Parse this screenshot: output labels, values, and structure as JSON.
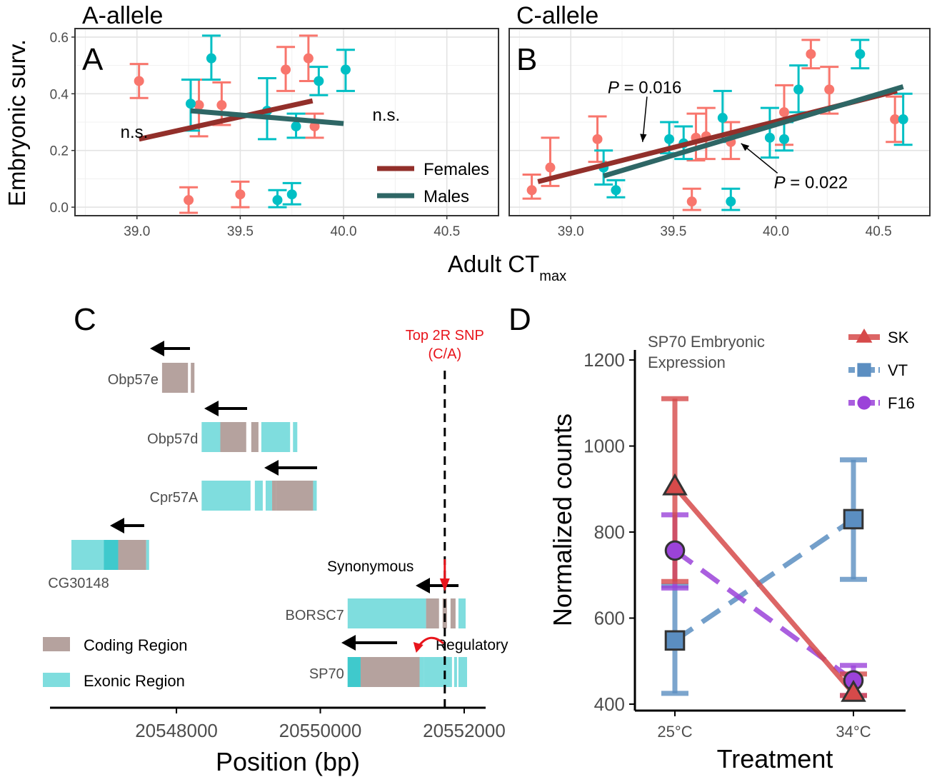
{
  "figure": {
    "y_label_AB": "Embryonic surv.",
    "x_label_AB_main": "Adult CT",
    "x_label_AB_sub": "max"
  },
  "chart_data": [
    {
      "id": "A",
      "type": "scatter",
      "panel_letter": "A",
      "title": "A-allele",
      "xlim": [
        38.7,
        40.75
      ],
      "ylim": [
        -0.03,
        0.63
      ],
      "x_ticks": [
        39.0,
        39.5,
        40.0,
        40.5
      ],
      "x_tick_labels": [
        "39.0",
        "39.5",
        "40.0",
        "40.5"
      ],
      "y_ticks": [
        0.0,
        0.2,
        0.4,
        0.6
      ],
      "y_tick_labels": [
        "0.0",
        "0.2",
        "0.4",
        "0.6"
      ],
      "grid": true,
      "legend_position": "bottom-right",
      "series": [
        {
          "name": "Females",
          "color": "#F8766D",
          "points": [
            {
              "x": 39.01,
              "y": 0.445,
              "lo": 0.385,
              "hi": 0.505
            },
            {
              "x": 39.25,
              "y": 0.025,
              "lo": -0.02,
              "hi": 0.07
            },
            {
              "x": 39.3,
              "y": 0.36,
              "lo": 0.25,
              "hi": 0.45
            },
            {
              "x": 39.41,
              "y": 0.36,
              "lo": 0.29,
              "hi": 0.44
            },
            {
              "x": 39.5,
              "y": 0.045,
              "lo": 0.0,
              "hi": 0.09
            },
            {
              "x": 39.72,
              "y": 0.485,
              "lo": 0.41,
              "hi": 0.565
            },
            {
              "x": 39.83,
              "y": 0.525,
              "lo": 0.445,
              "hi": 0.605
            },
            {
              "x": 39.86,
              "y": 0.285,
              "lo": 0.245,
              "hi": 0.33
            }
          ],
          "fit": {
            "x": [
              39.01,
              39.85
            ],
            "y": [
              0.24,
              0.375
            ]
          }
        },
        {
          "name": "Males",
          "color": "#00BFC4",
          "points": [
            {
              "x": 39.26,
              "y": 0.365,
              "lo": 0.27,
              "hi": 0.45
            },
            {
              "x": 39.36,
              "y": 0.525,
              "lo": 0.45,
              "hi": 0.605
            },
            {
              "x": 39.63,
              "y": 0.34,
              "lo": 0.24,
              "hi": 0.455
            },
            {
              "x": 39.68,
              "y": 0.025,
              "lo": 0.0,
              "hi": 0.06
            },
            {
              "x": 39.75,
              "y": 0.045,
              "lo": 0.01,
              "hi": 0.085
            },
            {
              "x": 39.77,
              "y": 0.285,
              "lo": 0.245,
              "hi": 0.33
            },
            {
              "x": 39.88,
              "y": 0.445,
              "lo": 0.395,
              "hi": 0.495
            },
            {
              "x": 40.01,
              "y": 0.485,
              "lo": 0.41,
              "hi": 0.555
            }
          ],
          "fit": {
            "x": [
              39.26,
              40.0
            ],
            "y": [
              0.34,
              0.295
            ]
          }
        }
      ],
      "annotations": [
        {
          "text": "n.s.",
          "x": 38.92,
          "y": 0.245
        },
        {
          "text": "n.s.",
          "x": 40.14,
          "y": 0.305
        }
      ]
    },
    {
      "id": "B",
      "type": "scatter",
      "panel_letter": "B",
      "title": "C-allele",
      "xlim": [
        38.7,
        40.75
      ],
      "ylim": [
        -0.03,
        0.63
      ],
      "x_ticks": [
        39.0,
        39.5,
        40.0,
        40.5
      ],
      "x_tick_labels": [
        "39.0",
        "39.5",
        "40.0",
        "40.5"
      ],
      "grid": true,
      "series": [
        {
          "name": "Females",
          "color": "#F8766D",
          "points": [
            {
              "x": 38.81,
              "y": 0.06,
              "lo": 0.03,
              "hi": 0.115
            },
            {
              "x": 38.9,
              "y": 0.14,
              "lo": 0.075,
              "hi": 0.245
            },
            {
              "x": 39.13,
              "y": 0.24,
              "lo": 0.16,
              "hi": 0.32
            },
            {
              "x": 39.59,
              "y": 0.02,
              "lo": -0.01,
              "hi": 0.065
            },
            {
              "x": 39.61,
              "y": 0.245,
              "lo": 0.165,
              "hi": 0.33
            },
            {
              "x": 39.66,
              "y": 0.25,
              "lo": 0.17,
              "hi": 0.35
            },
            {
              "x": 39.78,
              "y": 0.23,
              "lo": 0.17,
              "hi": 0.3
            },
            {
              "x": 40.04,
              "y": 0.335,
              "lo": 0.22,
              "hi": 0.43
            },
            {
              "x": 40.17,
              "y": 0.54,
              "lo": 0.49,
              "hi": 0.59
            },
            {
              "x": 40.26,
              "y": 0.415,
              "lo": 0.33,
              "hi": 0.495
            },
            {
              "x": 40.58,
              "y": 0.31,
              "lo": 0.23,
              "hi": 0.39
            }
          ],
          "fit": {
            "x": [
              38.84,
              40.59
            ],
            "y": [
              0.09,
              0.41
            ]
          }
        },
        {
          "name": "Males",
          "color": "#00BFC4",
          "points": [
            {
              "x": 39.16,
              "y": 0.14,
              "lo": 0.08,
              "hi": 0.2
            },
            {
              "x": 39.22,
              "y": 0.06,
              "lo": 0.035,
              "hi": 0.095
            },
            {
              "x": 39.48,
              "y": 0.24,
              "lo": 0.19,
              "hi": 0.3
            },
            {
              "x": 39.55,
              "y": 0.225,
              "lo": 0.17,
              "hi": 0.285
            },
            {
              "x": 39.74,
              "y": 0.315,
              "lo": 0.23,
              "hi": 0.41
            },
            {
              "x": 39.78,
              "y": 0.02,
              "lo": -0.01,
              "hi": 0.065
            },
            {
              "x": 39.97,
              "y": 0.245,
              "lo": 0.175,
              "hi": 0.35
            },
            {
              "x": 40.04,
              "y": 0.24,
              "lo": 0.2,
              "hi": 0.3
            },
            {
              "x": 40.11,
              "y": 0.415,
              "lo": 0.335,
              "hi": 0.5
            },
            {
              "x": 40.41,
              "y": 0.54,
              "lo": 0.49,
              "hi": 0.59
            },
            {
              "x": 40.62,
              "y": 0.31,
              "lo": 0.22,
              "hi": 0.4
            }
          ],
          "fit": {
            "x": [
              39.16,
              40.62
            ],
            "y": [
              0.11,
              0.425
            ]
          }
        }
      ],
      "annotations": [
        {
          "text_prefix": "P",
          "text": " = 0.016",
          "x": 39.18,
          "y": 0.425,
          "arrow_to": [
            39.35,
            0.23
          ]
        },
        {
          "text_prefix": "P",
          "text": " = 0.022",
          "x": 39.99,
          "y": 0.09,
          "arrow_to": [
            39.83,
            0.225
          ]
        }
      ]
    },
    {
      "id": "D",
      "type": "line",
      "panel_letter": "D",
      "inset_title": [
        "SP70 Embryonic",
        "Expression"
      ],
      "xlabel": "Treatment",
      "ylabel": "Normalized counts",
      "categories": [
        "25°C",
        "34°C"
      ],
      "ylim": [
        385,
        1240
      ],
      "y_ticks": [
        400,
        600,
        800,
        1000,
        1200
      ],
      "y_tick_labels": [
        "400",
        "600",
        "800",
        "1000",
        "1200"
      ],
      "grid": false,
      "legend_position": "top-right",
      "series": [
        {
          "name": "SK",
          "color": "#D64A4A",
          "marker": "triangle",
          "dash": "solid",
          "values": [
            905,
            425
          ],
          "lo": [
            685,
            420
          ],
          "hi": [
            1110,
            470
          ]
        },
        {
          "name": "VT",
          "color": "#5B8EC1",
          "marker": "square",
          "dash": "dashed",
          "values": [
            548,
            830
          ],
          "lo": [
            425,
            690
          ],
          "hi": [
            675,
            968
          ]
        },
        {
          "name": "F16",
          "color": "#9B43D9",
          "marker": "circle",
          "dash": "dashed",
          "values": [
            757,
            455
          ],
          "lo": [
            670,
            420
          ],
          "hi": [
            840,
            490
          ]
        }
      ]
    }
  ],
  "gene_panel": {
    "panel_letter": "C",
    "xlabel": "Position (bp)",
    "xlim": [
      20546250,
      20552420
    ],
    "x_ticks": [
      20548000,
      20550000,
      20552000
    ],
    "x_tick_labels": [
      "20548000",
      "20550000",
      "20552000"
    ],
    "snp_position": 20551730,
    "snp_label": [
      "Top 2R SNP",
      "(C/A)"
    ],
    "snp_color": "#E8151C",
    "synonymous_label": "Synonymous",
    "regulatory_label": "Regulatory",
    "coding_color": "#B5A29E",
    "exonic_color": "#7FDDDE",
    "legend": [
      {
        "name": "Coding Region",
        "color": "#B5A29E"
      },
      {
        "name": "Exonic Region",
        "color": "#7FDDDE"
      }
    ],
    "genes": [
      {
        "name": "Obp57e",
        "segments": [
          {
            "start": 20547800,
            "end": 20548160,
            "type": "coding"
          },
          {
            "start": 20548200,
            "end": 20548250,
            "type": "coding"
          }
        ]
      },
      {
        "name": "Obp57d",
        "segments": [
          {
            "start": 20548350,
            "end": 20548610,
            "type": "exonic"
          },
          {
            "start": 20548610,
            "end": 20548970,
            "type": "coding"
          },
          {
            "start": 20549040,
            "end": 20549140,
            "type": "coding"
          },
          {
            "start": 20549180,
            "end": 20549580,
            "type": "exonic"
          },
          {
            "start": 20549620,
            "end": 20549680,
            "type": "exonic"
          }
        ]
      },
      {
        "name": "Cpr57A",
        "segments": [
          {
            "start": 20548350,
            "end": 20549030,
            "type": "exonic"
          },
          {
            "start": 20549090,
            "end": 20549200,
            "type": "exonic"
          },
          {
            "start": 20549240,
            "end": 20549330,
            "type": "exonic"
          },
          {
            "start": 20549330,
            "end": 20549380,
            "type": "coding"
          },
          {
            "start": 20549380,
            "end": 20549900,
            "type": "coding"
          },
          {
            "start": 20549900,
            "end": 20549950,
            "type": "exonic"
          }
        ]
      },
      {
        "name": "CG30148",
        "segments": [
          {
            "start": 20546540,
            "end": 20546990,
            "type": "exonic"
          },
          {
            "start": 20546990,
            "end": 20547190,
            "type": "exonic"
          },
          {
            "start": 20547190,
            "end": 20547580,
            "type": "coding"
          },
          {
            "start": 20547580,
            "end": 20547620,
            "type": "exonic"
          }
        ]
      },
      {
        "name": "BORSC7",
        "segments": [
          {
            "start": 20550380,
            "end": 20551470,
            "type": "exonic"
          },
          {
            "start": 20551470,
            "end": 20551650,
            "type": "coding"
          },
          {
            "start": 20551700,
            "end": 20551760,
            "type": "coding"
          },
          {
            "start": 20551810,
            "end": 20551880,
            "type": "coding"
          },
          {
            "start": 20551920,
            "end": 20552020,
            "type": "exonic"
          }
        ]
      },
      {
        "name": "SP70",
        "segments": [
          {
            "start": 20550380,
            "end": 20550560,
            "type": "exonic"
          },
          {
            "start": 20550560,
            "end": 20551380,
            "type": "coding"
          },
          {
            "start": 20551380,
            "end": 20551440,
            "type": "exonic"
          },
          {
            "start": 20551440,
            "end": 20551830,
            "type": "exonic"
          },
          {
            "start": 20551860,
            "end": 20551900,
            "type": "exonic"
          },
          {
            "start": 20551920,
            "end": 20552040,
            "type": "exonic"
          }
        ]
      }
    ]
  }
}
